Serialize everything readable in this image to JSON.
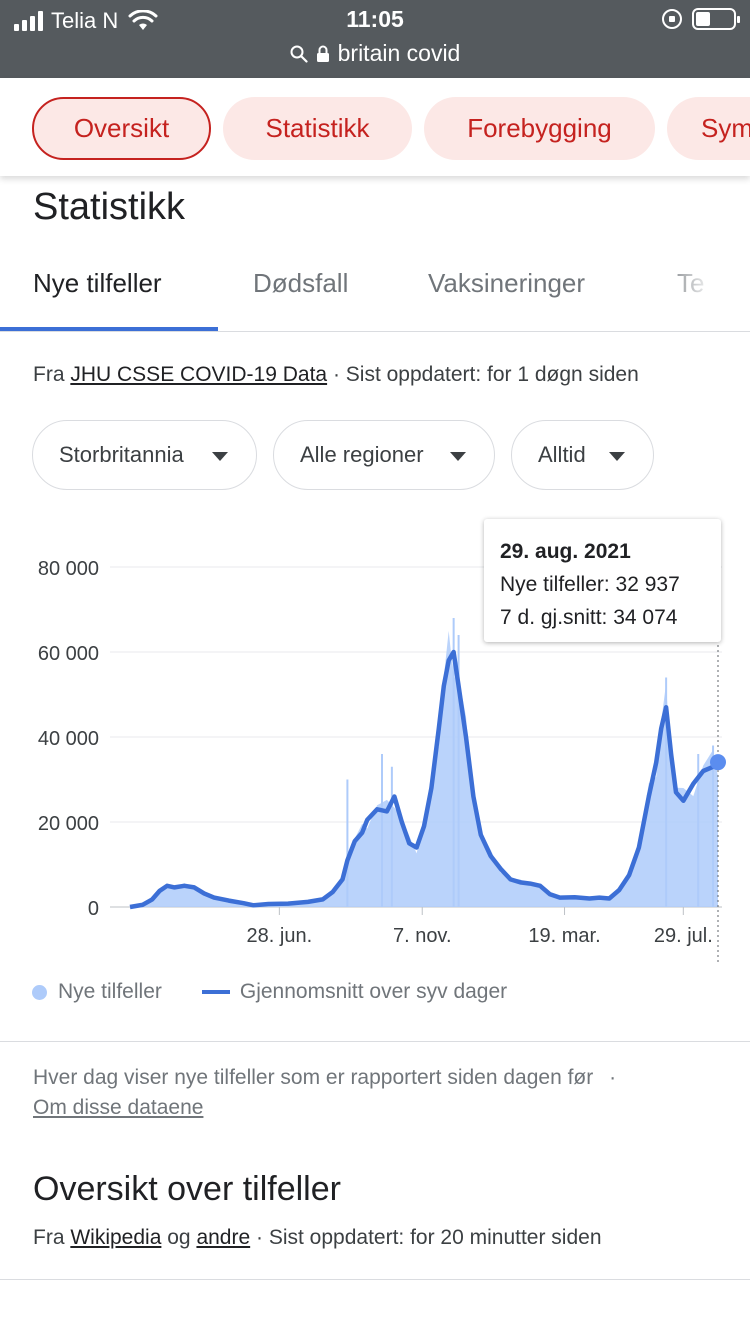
{
  "status": {
    "carrier": "Telia N",
    "time": "11:05",
    "url": "britain covid"
  },
  "chips": [
    {
      "label": "Oversikt",
      "active": true
    },
    {
      "label": "Statistikk",
      "active": false
    },
    {
      "label": "Forebygging",
      "active": false
    },
    {
      "label": "Sym",
      "active": false
    }
  ],
  "section_title": "Statistikk",
  "tabs": [
    {
      "label": "Nye tilfeller",
      "active": true
    },
    {
      "label": "Dødsfall",
      "active": false
    },
    {
      "label": "Vaksineringer",
      "active": false
    },
    {
      "label": "Te",
      "active": false
    }
  ],
  "source": {
    "prefix": "Fra",
    "link": "JHU CSSE COVID-19 Data",
    "suffix": "· Sist oppdatert: for 1 døgn siden"
  },
  "filters": {
    "country": "Storbritannia",
    "region": "Alle regioner",
    "period": "Alltid"
  },
  "tooltip": {
    "date": "29. aug. 2021",
    "cases": "Nye tilfeller: 32 937",
    "avg": "7 d. gj.snitt: 34 074"
  },
  "legend": {
    "daily": "Nye tilfeller",
    "avg": "Gjennomsnitt over syv dager"
  },
  "note": {
    "text": "Hver dag viser nye tilfeller som er rapportert siden dagen før",
    "sep": "·",
    "link": "Om disse dataene"
  },
  "overview": {
    "title": "Oversikt over tilfeller",
    "src_prefix": "Fra",
    "src_link1": "Wikipedia",
    "src_and": "og",
    "src_link2": "andre",
    "src_suffix": "· Sist oppdatert: for 20 minutter siden"
  },
  "colors": {
    "accent_red": "#c5221f",
    "chip_bg": "#fce8e6",
    "line_blue": "#3c6fd6",
    "area_blue": "#aecbfa"
  },
  "chart_data": {
    "type": "area",
    "ylim": [
      0,
      80000
    ],
    "yticks": [
      {
        "value": 0,
        "label": "0"
      },
      {
        "value": 20000,
        "label": "20 000"
      },
      {
        "value": 40000,
        "label": "40 000"
      },
      {
        "value": 60000,
        "label": "60 000"
      },
      {
        "value": 80000,
        "label": "80 000"
      }
    ],
    "xticks": [
      {
        "t": 0.254,
        "label": "28. jun."
      },
      {
        "t": 0.497,
        "label": "7. nov."
      },
      {
        "t": 0.739,
        "label": "19. mar."
      },
      {
        "t": 0.941,
        "label": "29. jul."
      }
    ],
    "grid": true,
    "legend_position": "bottom-left",
    "series": [
      {
        "name": "Gjennomsnitt over syv dager",
        "points": [
          [
            0,
            0
          ],
          [
            0.025,
            500
          ],
          [
            0.045,
            1800
          ],
          [
            0.06,
            3800
          ],
          [
            0.075,
            5000
          ],
          [
            0.09,
            4600
          ],
          [
            0.11,
            5000
          ],
          [
            0.13,
            4600
          ],
          [
            0.15,
            3200
          ],
          [
            0.17,
            2200
          ],
          [
            0.2,
            1500
          ],
          [
            0.23,
            900
          ],
          [
            0.25,
            400
          ],
          [
            0.28,
            700
          ],
          [
            0.32,
            800
          ],
          [
            0.36,
            1200
          ],
          [
            0.39,
            1800
          ],
          [
            0.41,
            3500
          ],
          [
            0.43,
            6500
          ],
          [
            0.44,
            11000
          ],
          [
            0.455,
            15500
          ],
          [
            0.47,
            17500
          ],
          [
            0.48,
            20500
          ],
          [
            0.5,
            23000
          ],
          [
            0.52,
            22500
          ],
          [
            0.535,
            26000
          ],
          [
            0.55,
            20000
          ],
          [
            0.565,
            15000
          ],
          [
            0.58,
            14000
          ],
          [
            0.595,
            19000
          ],
          [
            0.61,
            28000
          ],
          [
            0.625,
            42000
          ],
          [
            0.635,
            52000
          ],
          [
            0.645,
            58000
          ],
          [
            0.655,
            60000
          ],
          [
            0.665,
            52000
          ],
          [
            0.68,
            40000
          ],
          [
            0.695,
            26000
          ],
          [
            0.71,
            17000
          ],
          [
            0.73,
            12000
          ],
          [
            0.75,
            9000
          ],
          [
            0.77,
            6500
          ],
          [
            0.79,
            5800
          ],
          [
            0.81,
            5500
          ],
          [
            0.83,
            5000
          ],
          [
            0.85,
            3000
          ],
          [
            0.87,
            2200
          ],
          [
            0.9,
            2300
          ],
          [
            0.93,
            2000
          ],
          [
            0.95,
            2200
          ],
          [
            0.97,
            2000
          ],
          [
            0.99,
            4000
          ],
          [
            1.01,
            7500
          ],
          [
            1.03,
            14000
          ],
          [
            1.05,
            26000
          ],
          [
            1.065,
            34000
          ],
          [
            1.075,
            42000
          ],
          [
            1.085,
            47000
          ],
          [
            1.095,
            36000
          ],
          [
            1.105,
            27000
          ],
          [
            1.12,
            25000
          ],
          [
            1.14,
            29000
          ],
          [
            1.16,
            32000
          ],
          [
            1.18,
            33000
          ],
          [
            1.19,
            34074
          ]
        ]
      }
    ],
    "selected_point": {
      "t": 1.19,
      "value": 34074
    }
  }
}
